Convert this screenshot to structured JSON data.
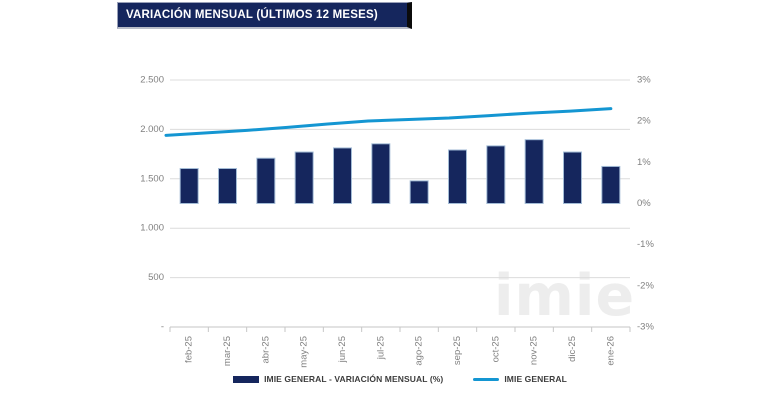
{
  "title_bar": {
    "text": "VARIACIÓN MENSUAL (ÚLTIMOS 12 MESES)"
  },
  "watermark": "imie",
  "colors": {
    "title_bg": "#15265d",
    "title_text": "#ffffff",
    "bar_fill": "#15265d",
    "bar_border": "#a3bcd6",
    "line": "#1496d2",
    "grid": "#dcdcdc",
    "axis_line": "#c6c6c6",
    "axis_text": "#808080",
    "legend_text": "#3d3d3d",
    "watermark": "#ededed"
  },
  "chart_data": {
    "type": "bar",
    "title": "VARIACIÓN MENSUAL (ÚLTIMOS 12 MESES)",
    "categories": [
      "feb-25",
      "mar-25",
      "abr-25",
      "may-25",
      "jun-25",
      "jul-25",
      "ago-25",
      "sep-25",
      "oct-25",
      "nov-25",
      "dic-25",
      "ene-26"
    ],
    "series": [
      {
        "name": "IMIE GENERAL - VARIACIÓN MENSUAL (%)",
        "type": "bar",
        "axis": "right",
        "values": [
          0.85,
          0.85,
          1.1,
          1.25,
          1.35,
          1.45,
          0.55,
          1.3,
          1.4,
          1.55,
          1.25,
          0.9
        ]
      },
      {
        "name": "IMIE GENERAL",
        "type": "line",
        "axis": "left",
        "values": [
          1940,
          1965,
          1990,
          2020,
          2055,
          2085,
          2100,
          2115,
          2140,
          2165,
          2185,
          2210
        ]
      }
    ],
    "left_axis": {
      "min": 0,
      "max": 2500,
      "step": 500,
      "labels": [
        "-",
        "500",
        "1.000",
        "1.500",
        "2.000",
        "2.500"
      ]
    },
    "right_axis": {
      "min": -3,
      "max": 3,
      "step": 1,
      "labels": [
        "-3%",
        "-2%",
        "-1%",
        "0%",
        "1%",
        "2%",
        "3%"
      ]
    },
    "grid": true,
    "legend_position": "bottom"
  }
}
